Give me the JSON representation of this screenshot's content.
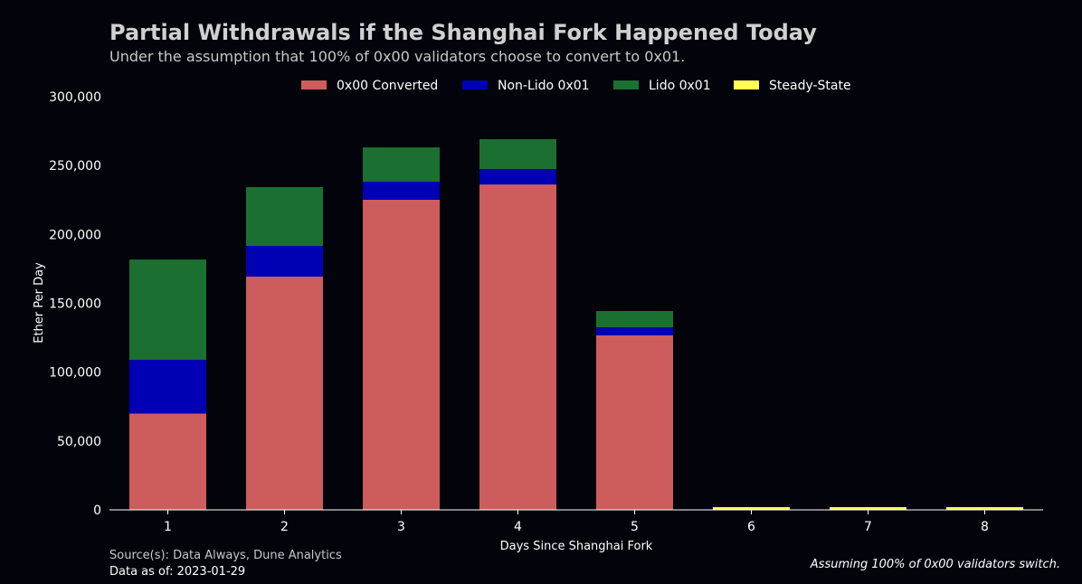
{
  "chart_data": {
    "type": "bar",
    "stacked": true,
    "title": "Partial Withdrawals if the Shanghai Fork Happened Today",
    "subtitle": "Under the assumption that 100% of 0x00 validators choose to convert to 0x01.",
    "xlabel": "Days Since Shanghai Fork",
    "ylabel": "Ether Per Day",
    "ylim": [
      0,
      300000
    ],
    "yticks": [
      "0",
      "50,000",
      "100,000",
      "150,000",
      "200,000",
      "250,000",
      "300,000"
    ],
    "categories": [
      "1",
      "2",
      "3",
      "4",
      "5",
      "6",
      "7",
      "8"
    ],
    "legend_position": "top-center",
    "series": [
      {
        "name": "0x00 Converted",
        "color": "#cd5c5c",
        "values": [
          70000,
          169400,
          225200,
          236300,
          126700,
          0,
          0,
          0
        ]
      },
      {
        "name": "Non-Lido 0x01",
        "color": "#0000b4",
        "values": [
          39000,
          22300,
          13100,
          11200,
          5900,
          0,
          0,
          0
        ]
      },
      {
        "name": "Lido 0x01",
        "color": "#1b7031",
        "values": [
          72800,
          42700,
          24900,
          21700,
          11800,
          0,
          0,
          0
        ]
      },
      {
        "name": "Steady-State",
        "color": "#ffff55",
        "values": [
          0,
          0,
          0,
          0,
          0,
          2000,
          2000,
          2000
        ]
      }
    ],
    "source": "Source(s): Data Always, Dune Analytics",
    "data_as_of": "Data as of: 2023-01-29",
    "footnote": "Assuming 100% of 0x00 validators switch."
  }
}
